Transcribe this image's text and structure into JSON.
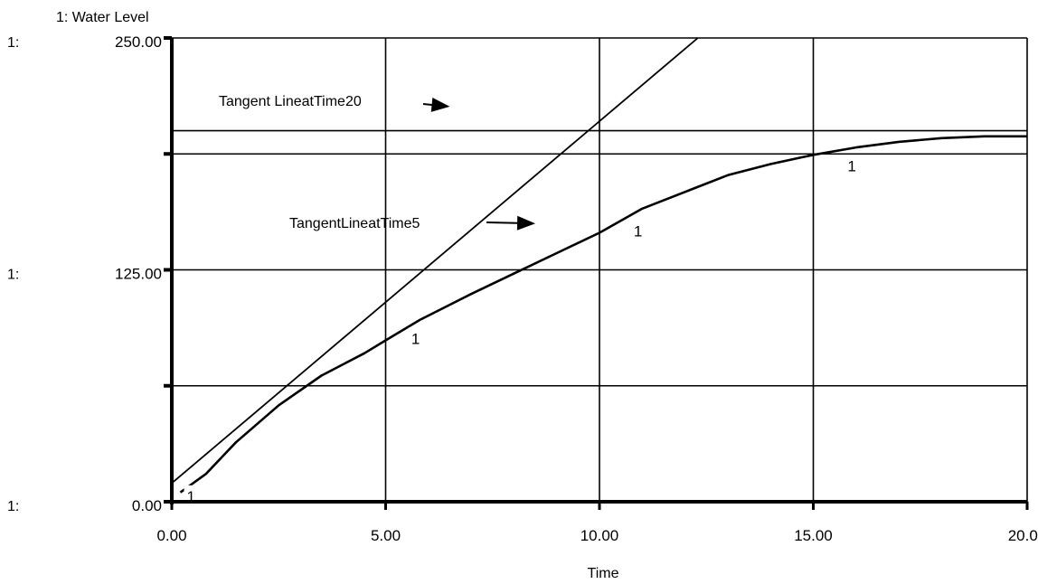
{
  "chart_data": {
    "type": "line",
    "series_header": "1: Water Level",
    "xlabel": "Time",
    "xlim": [
      0,
      20
    ],
    "ylim": [
      0,
      250
    ],
    "grid": true,
    "x_ticks": [
      0,
      5,
      10,
      15,
      20
    ],
    "x_tick_labels": [
      "0.00",
      "5.00",
      "10.00",
      "15.00",
      "20.00"
    ],
    "y_gridlines": [
      62.5,
      125,
      187.5,
      250
    ],
    "y_tick_labels": [
      {
        "value": 250,
        "prefix": "1:",
        "label": "250.00"
      },
      {
        "value": 125,
        "prefix": "1:",
        "label": "125.00"
      },
      {
        "value": 0,
        "prefix": "1:",
        "label": "0.00"
      }
    ],
    "series": [
      {
        "marker": "1",
        "x": [
          0.2,
          0.8,
          1.5,
          2.5,
          3.5,
          4.5,
          5.0,
          5.8,
          7.0,
          8.0,
          9.0,
          10.0,
          11.0,
          12.0,
          13.0,
          14.0,
          15.0,
          16.0,
          17.0,
          18.0,
          19.0,
          20.0
        ],
        "y": [
          5,
          15,
          32,
          52,
          68,
          80,
          87,
          98,
          112,
          123,
          134,
          145,
          158,
          167,
          176,
          182,
          187,
          191,
          194,
          196,
          197,
          197
        ],
        "marker_points": [
          {
            "x": 0.35,
            "y": 3
          },
          {
            "x": 5.6,
            "y": 88
          },
          {
            "x": 10.8,
            "y": 146
          },
          {
            "x": 15.8,
            "y": 181
          }
        ]
      }
    ],
    "reference_lines": [
      {
        "type": "tangent",
        "x": [
          0,
          12.3
        ],
        "y": [
          10,
          250
        ]
      },
      {
        "type": "horizontal",
        "y": 200
      }
    ],
    "annotations": [
      {
        "text": "Tangent LineatTime20",
        "arrow_to": {
          "x": 6.5,
          "y": 213
        }
      },
      {
        "text": "TangentLineatTime5",
        "arrow_to": {
          "x": 8.5,
          "y": 150
        }
      }
    ]
  }
}
